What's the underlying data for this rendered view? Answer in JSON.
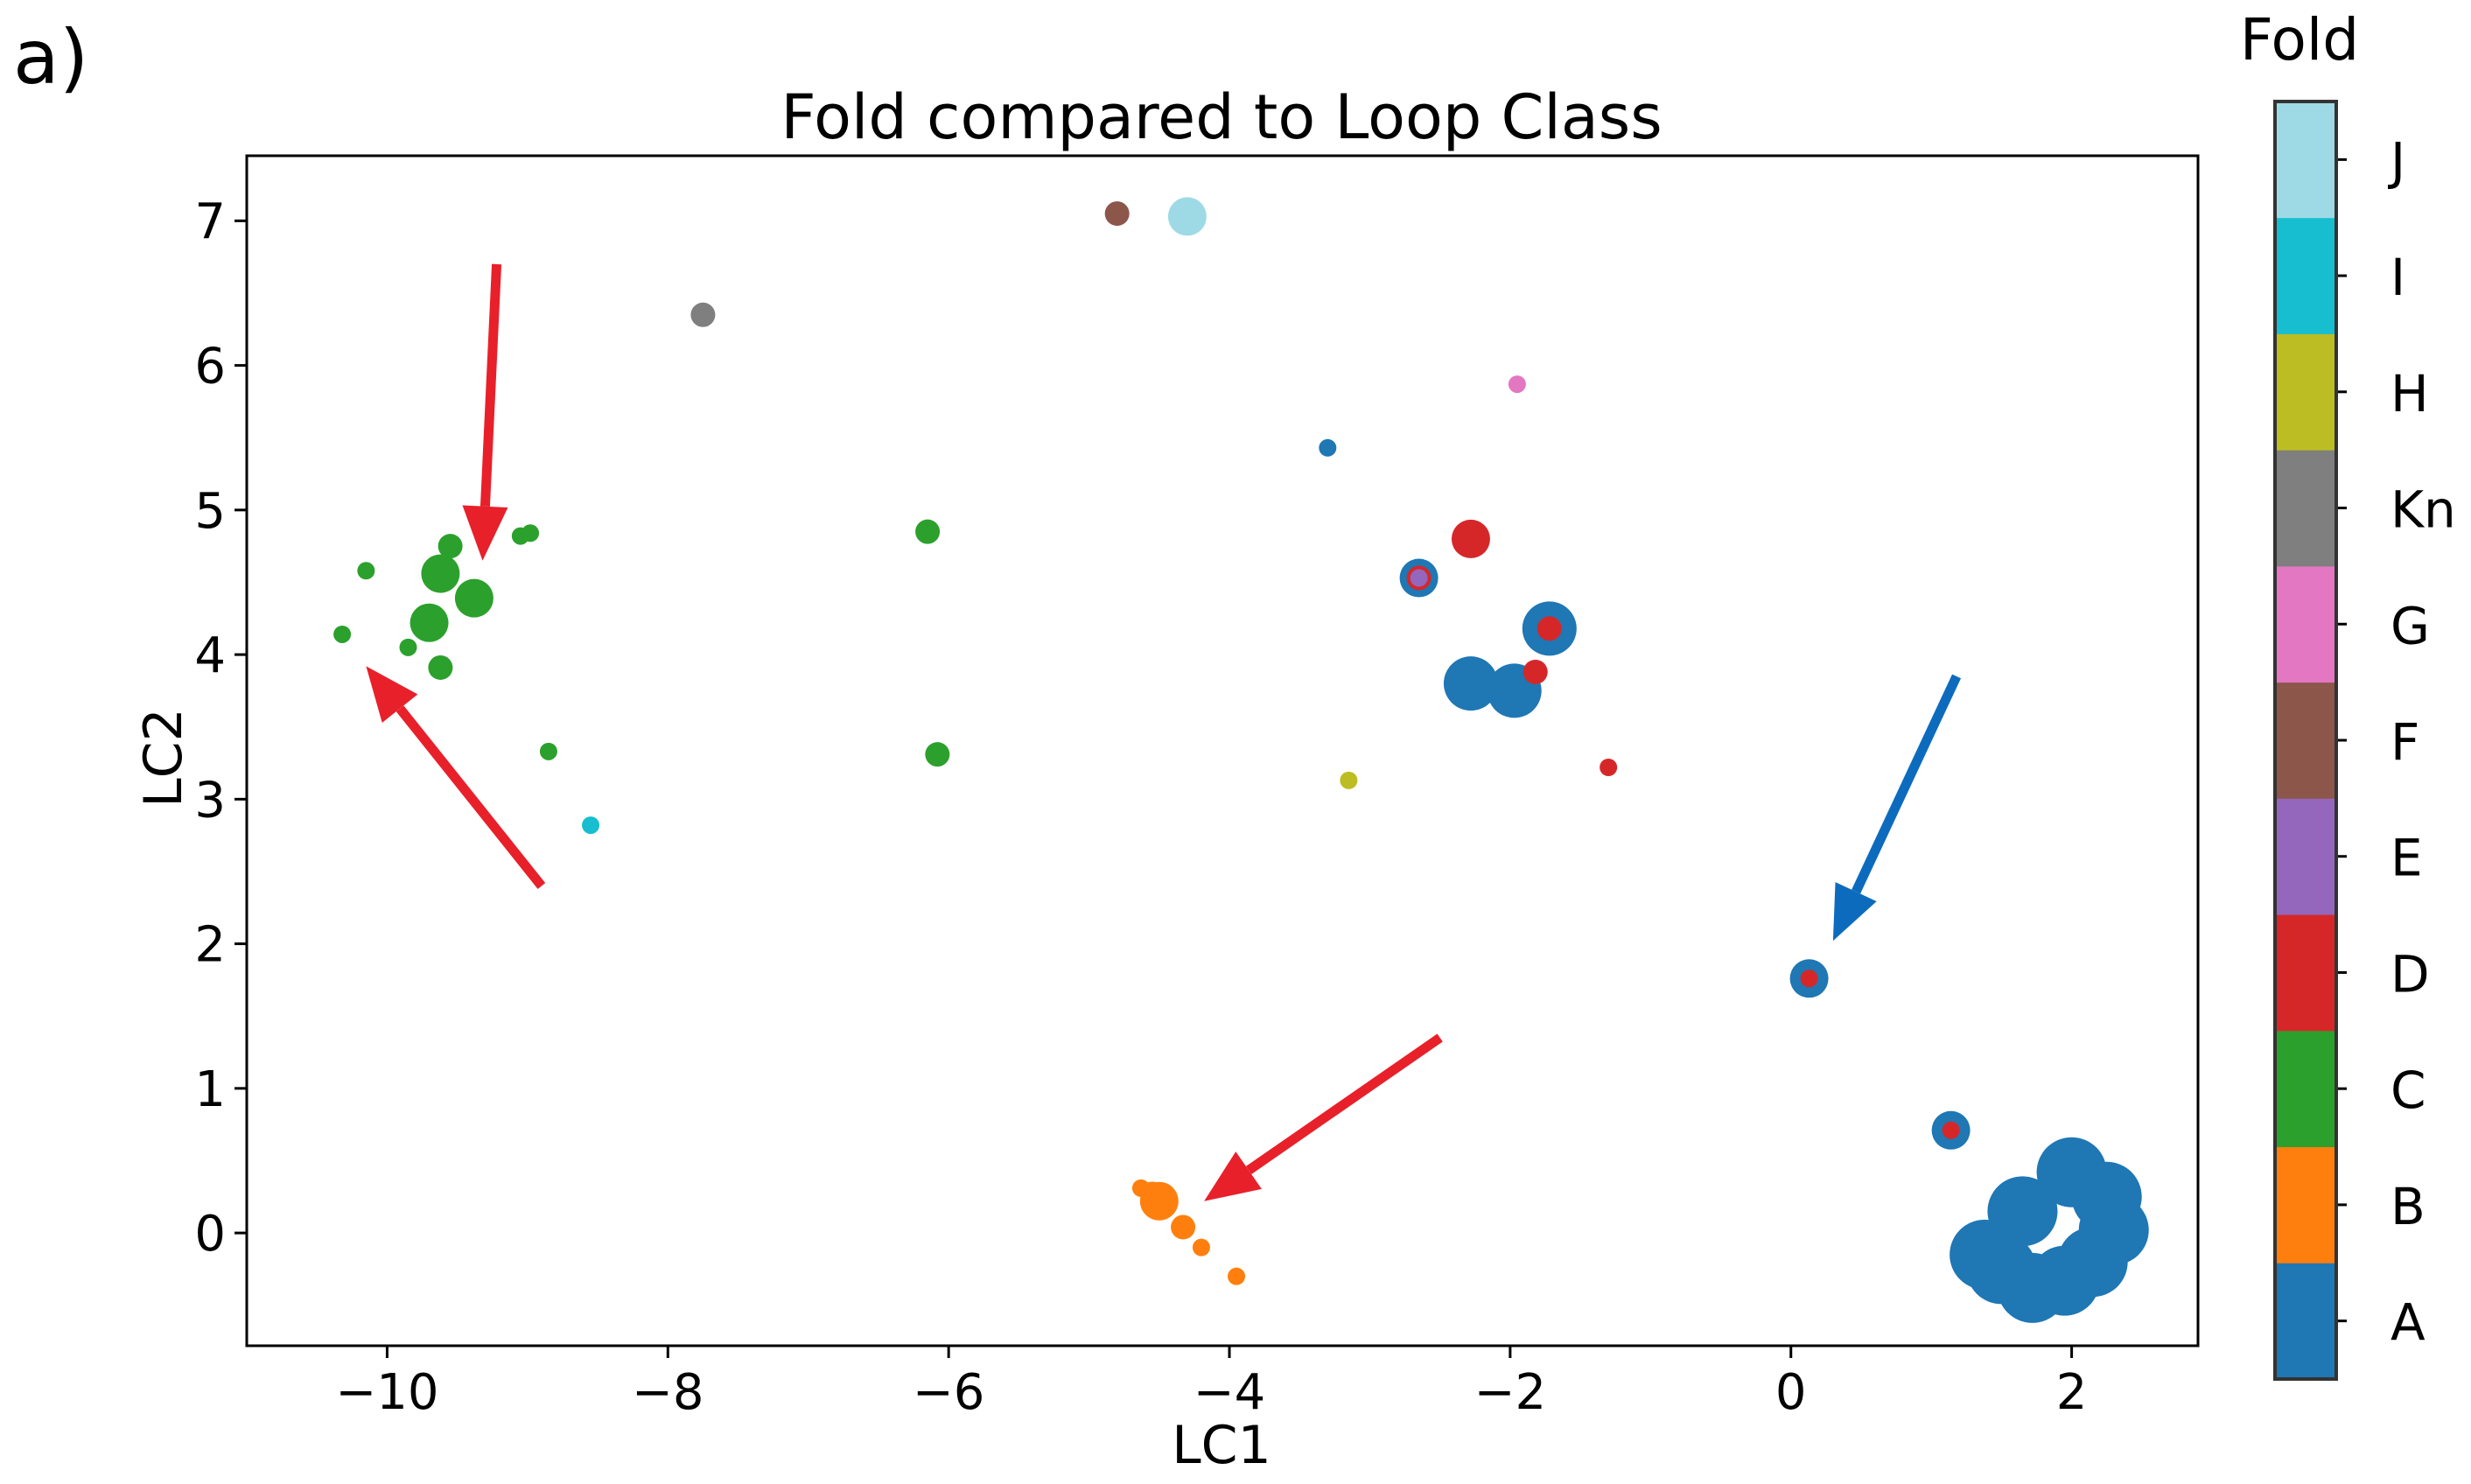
{
  "chart_data": {
    "type": "scatter",
    "panel_label": "a)",
    "title": "Fold compared to Loop Class",
    "xlabel": "LC1",
    "ylabel": "LC2",
    "xlim": [
      -11.0,
      2.9
    ],
    "ylim": [
      -0.78,
      7.45
    ],
    "x_ticks": [
      -10,
      -8,
      -6,
      -4,
      -2,
      0,
      2
    ],
    "y_ticks": [
      0,
      1,
      2,
      3,
      4,
      5,
      6,
      7
    ],
    "grid": false,
    "colorbar": {
      "title": "Fold",
      "labels": [
        "A",
        "B",
        "C",
        "D",
        "E",
        "F",
        "G",
        "Kn",
        "H",
        "I",
        "J"
      ],
      "colors": [
        "#1f77b4",
        "#ff7f0e",
        "#2ca02c",
        "#d62728",
        "#9467bd",
        "#8c564b",
        "#e377c2",
        "#7f7f7f",
        "#bcbd22",
        "#17becf",
        "#9edae5"
      ]
    },
    "points": [
      {
        "x": -4.8,
        "y": 7.05,
        "fold": "F",
        "size": "s"
      },
      {
        "x": -4.3,
        "y": 7.03,
        "fold": "J",
        "size": "m"
      },
      {
        "x": -7.75,
        "y": 6.35,
        "fold": "Kn",
        "size": "s"
      },
      {
        "x": -1.95,
        "y": 5.87,
        "fold": "G",
        "size": "xs"
      },
      {
        "x": -3.3,
        "y": 5.43,
        "fold": "A",
        "size": "xs"
      },
      {
        "x": -9.55,
        "y": 4.75,
        "fold": "C",
        "size": "s"
      },
      {
        "x": -9.05,
        "y": 4.82,
        "fold": "C",
        "size": "xs"
      },
      {
        "x": -8.98,
        "y": 4.84,
        "fold": "C",
        "size": "xs"
      },
      {
        "x": -10.15,
        "y": 4.58,
        "fold": "C",
        "size": "xs"
      },
      {
        "x": -9.62,
        "y": 4.56,
        "fold": "C",
        "size": "m"
      },
      {
        "x": -9.38,
        "y": 4.39,
        "fold": "C",
        "size": "m"
      },
      {
        "x": -9.7,
        "y": 4.22,
        "fold": "C",
        "size": "m"
      },
      {
        "x": -10.32,
        "y": 4.14,
        "fold": "C",
        "size": "xs"
      },
      {
        "x": -9.85,
        "y": 4.05,
        "fold": "C",
        "size": "xs"
      },
      {
        "x": -9.62,
        "y": 3.91,
        "fold": "C",
        "size": "s"
      },
      {
        "x": -6.15,
        "y": 4.85,
        "fold": "C",
        "size": "s"
      },
      {
        "x": -8.85,
        "y": 3.33,
        "fold": "C",
        "size": "xs"
      },
      {
        "x": -6.08,
        "y": 3.31,
        "fold": "C",
        "size": "s"
      },
      {
        "x": -8.55,
        "y": 2.82,
        "fold": "I",
        "size": "xs"
      },
      {
        "x": -2.28,
        "y": 4.8,
        "fold": "D",
        "size": "m"
      },
      {
        "x": -2.65,
        "y": 4.53,
        "fold": "A",
        "size": "m"
      },
      {
        "x": -2.65,
        "y": 4.53,
        "fold": "D",
        "size": "s"
      },
      {
        "x": -2.65,
        "y": 4.53,
        "fold": "E",
        "size": "xs"
      },
      {
        "x": -1.72,
        "y": 4.18,
        "fold": "A",
        "size": "l"
      },
      {
        "x": -1.72,
        "y": 4.18,
        "fold": "D",
        "size": "s"
      },
      {
        "x": -2.28,
        "y": 3.8,
        "fold": "A",
        "size": "l"
      },
      {
        "x": -1.97,
        "y": 3.75,
        "fold": "A",
        "size": "l"
      },
      {
        "x": -1.82,
        "y": 3.88,
        "fold": "D",
        "size": "s"
      },
      {
        "x": -3.15,
        "y": 3.13,
        "fold": "H",
        "size": "xs"
      },
      {
        "x": -1.3,
        "y": 3.22,
        "fold": "D",
        "size": "xs"
      },
      {
        "x": 0.13,
        "y": 1.76,
        "fold": "A",
        "size": "m"
      },
      {
        "x": 0.13,
        "y": 1.76,
        "fold": "D",
        "size": "xs"
      },
      {
        "x": 1.14,
        "y": 0.71,
        "fold": "A",
        "size": "m"
      },
      {
        "x": 1.14,
        "y": 0.71,
        "fold": "D",
        "size": "xs"
      },
      {
        "x": -4.63,
        "y": 0.31,
        "fold": "B",
        "size": "xs"
      },
      {
        "x": -4.5,
        "y": 0.22,
        "fold": "B",
        "size": "m"
      },
      {
        "x": -4.55,
        "y": 0.27,
        "fold": "B",
        "size": "s"
      },
      {
        "x": -4.33,
        "y": 0.04,
        "fold": "B",
        "size": "s"
      },
      {
        "x": -4.2,
        "y": -0.1,
        "fold": "B",
        "size": "xs"
      },
      {
        "x": -3.95,
        "y": -0.3,
        "fold": "B",
        "size": "xs"
      },
      {
        "x": 1.65,
        "y": 0.15,
        "fold": "A",
        "size": "xl"
      },
      {
        "x": 2.0,
        "y": 0.42,
        "fold": "A",
        "size": "xl"
      },
      {
        "x": 2.25,
        "y": 0.25,
        "fold": "A",
        "size": "xl"
      },
      {
        "x": 2.3,
        "y": 0.02,
        "fold": "A",
        "size": "xl"
      },
      {
        "x": 2.15,
        "y": -0.2,
        "fold": "A",
        "size": "xl"
      },
      {
        "x": 1.95,
        "y": -0.33,
        "fold": "A",
        "size": "xl"
      },
      {
        "x": 1.72,
        "y": -0.38,
        "fold": "A",
        "size": "xl"
      },
      {
        "x": 1.5,
        "y": -0.25,
        "fold": "A",
        "size": "xl"
      },
      {
        "x": 1.38,
        "y": -0.15,
        "fold": "A",
        "size": "xl"
      }
    ],
    "arrows": [
      {
        "color": "#e8202a",
        "from": [
          -9.22,
          6.7
        ],
        "to": [
          -9.32,
          4.65
        ]
      },
      {
        "color": "#e8202a",
        "from": [
          -8.9,
          2.4
        ],
        "to": [
          -10.15,
          3.92
        ]
      },
      {
        "color": "#e8202a",
        "from": [
          -2.5,
          1.35
        ],
        "to": [
          -4.18,
          0.22
        ]
      },
      {
        "color": "#0d6bbd",
        "from": [
          1.18,
          3.85
        ],
        "to": [
          0.3,
          2.02
        ]
      }
    ]
  }
}
